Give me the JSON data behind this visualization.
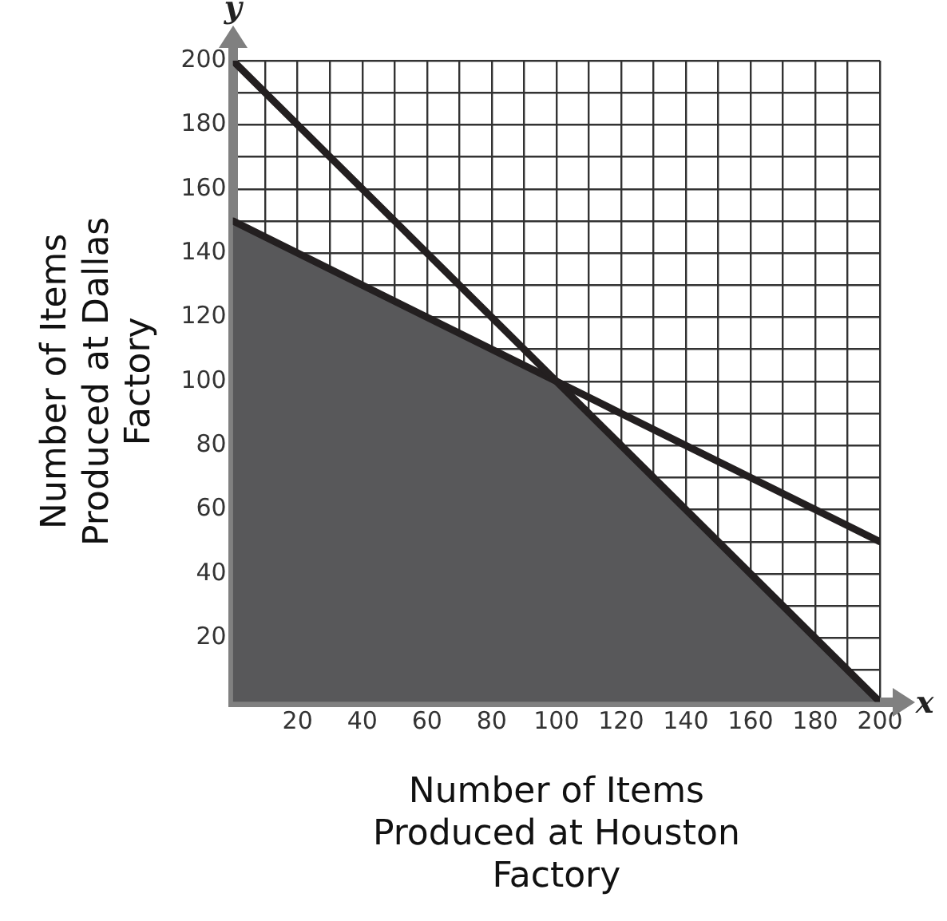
{
  "chart_data": {
    "type": "line",
    "xlabel": "Number of Items Produced at Houston Factory",
    "ylabel": "Number of Items Produced at Dallas Factory",
    "annotations": [
      "x",
      "y"
    ],
    "series": [
      {
        "type": "area",
        "color": "#58585a",
        "x": [
          0,
          100,
          200
        ],
        "values": [
          150,
          100,
          0
        ]
      },
      {
        "color": "#231f20",
        "x": [
          0,
          200
        ],
        "values": [
          200,
          0
        ]
      },
      {
        "color": "#231f20",
        "x": [
          0,
          200
        ],
        "values": [
          150,
          50
        ]
      }
    ],
    "xlim": [
      0,
      200
    ],
    "ylim": [
      0,
      200
    ],
    "xticks": [
      {
        "value": 0,
        "label": null
      },
      {
        "value": 10,
        "label": null
      },
      20,
      {
        "value": 30,
        "label": null
      },
      40,
      {
        "value": 50,
        "label": null
      },
      60,
      {
        "value": 70,
        "label": null
      },
      80,
      {
        "value": 90,
        "label": null
      },
      100,
      {
        "value": 110,
        "label": null
      },
      120,
      {
        "value": 130,
        "label": null
      },
      140,
      {
        "value": 150,
        "label": null
      },
      160,
      {
        "value": 170,
        "label": null
      },
      180,
      {
        "value": 190,
        "label": null
      },
      200
    ],
    "yticks": [
      {
        "value": 0,
        "label": null
      },
      {
        "value": 10,
        "label": null
      },
      20,
      {
        "value": 30,
        "label": null
      },
      40,
      {
        "value": 50,
        "label": null
      },
      60,
      {
        "value": 70,
        "label": null
      },
      80,
      {
        "value": 90,
        "label": null
      },
      100,
      {
        "value": 110,
        "label": null
      },
      120,
      {
        "value": 130,
        "label": null
      },
      140,
      {
        "value": 150,
        "label": null
      },
      160,
      {
        "value": 170,
        "label": null
      },
      180,
      {
        "value": 190,
        "label": null
      },
      200
    ],
    "grid": true,
    "legend": false,
    "marker": "none",
    "line_style": "solid"
  }
}
